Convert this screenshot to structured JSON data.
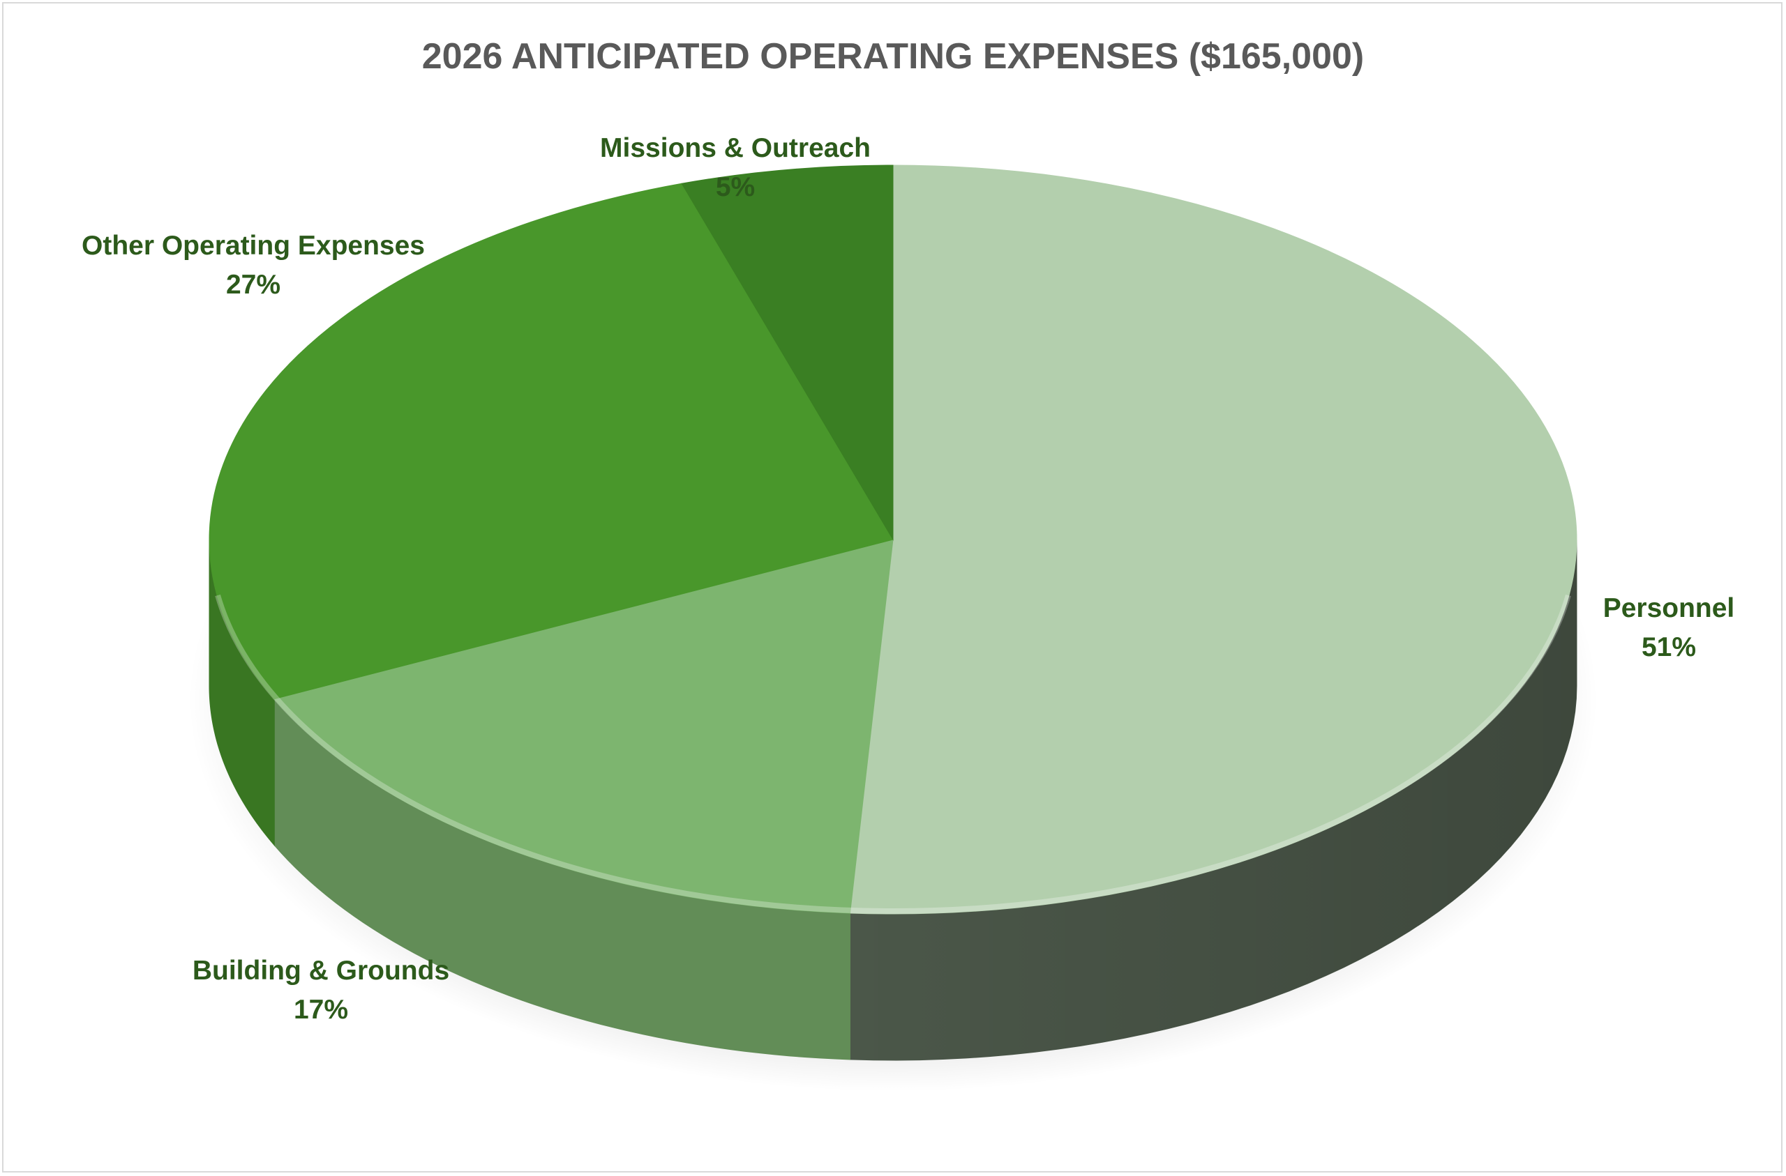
{
  "chart_data": {
    "type": "pie",
    "title": "2026 ANTICIPATED OPERATING EXPENSES ($165,000)",
    "slices": [
      {
        "name": "Personnel",
        "percent_label": "51%",
        "value": 51,
        "color": "#b3cfad"
      },
      {
        "name": "Building & Grounds",
        "percent_label": "17%",
        "value": 17,
        "color": "#7db56f"
      },
      {
        "name": "Other Operating Expenses",
        "percent_label": "27%",
        "value": 27,
        "color": "#49972b"
      },
      {
        "name": "Missions & Outreach",
        "percent_label": "5%",
        "value": 5,
        "color": "#3a7f23"
      }
    ],
    "label_color": "#2c5a1b",
    "title_color": "#595959",
    "style": "3d-pie",
    "legend": "none"
  }
}
